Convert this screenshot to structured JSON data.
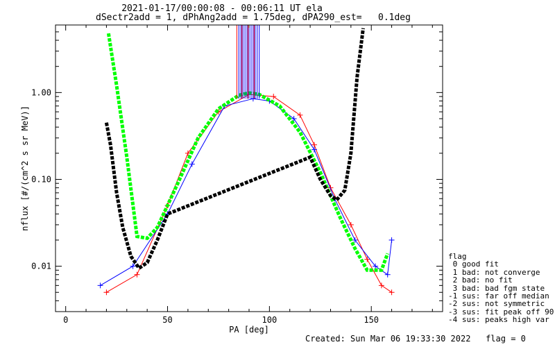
{
  "chart_data": {
    "type": "scatter",
    "title": "2021-01-17/00:00:08 - 00:06:11 UT ela",
    "subtitle": "dSectr2add = 1, dPhAng2add = 1.75deg, dPA290_est=   0.1deg",
    "xlabel": "PA [deg]",
    "ylabel": "nflux [#/(cm^2 s sr MeV)]",
    "xlim": [
      -5,
      185
    ],
    "ylim": [
      0.003,
      6.0
    ],
    "yscale": "log",
    "xticks": [
      0,
      50,
      100,
      150
    ],
    "yticks": [
      {
        "value": 0.01,
        "label": "0.01"
      },
      {
        "value": 0.1,
        "label": "0.10"
      },
      {
        "value": 1.0,
        "label": "1.00"
      }
    ],
    "series": [
      {
        "style": "thin lines with + markers",
        "color": "#ff0000",
        "x": [
          20,
          35,
          50,
          60,
          75,
          90,
          102,
          115,
          122,
          130,
          140,
          148,
          155,
          160
        ],
        "values": [
          0.005,
          0.008,
          0.05,
          0.2,
          0.6,
          0.95,
          0.9,
          0.55,
          0.25,
          0.08,
          0.03,
          0.012,
          0.006,
          0.005
        ]
      },
      {
        "style": "thin lines with + markers",
        "color": "#0000ff",
        "x": [
          17,
          33,
          50,
          62,
          78,
          92,
          100,
          112,
          122,
          132,
          142,
          152,
          158,
          160
        ],
        "values": [
          0.006,
          0.01,
          0.04,
          0.15,
          0.7,
          0.85,
          0.8,
          0.5,
          0.22,
          0.06,
          0.02,
          0.01,
          0.008,
          0.02
        ]
      },
      {
        "style": "thick dashed fit",
        "color": "#00ff00",
        "x": [
          21,
          25,
          30,
          35,
          40,
          45,
          55,
          65,
          75,
          85,
          90,
          95,
          105,
          115,
          125,
          135,
          142,
          148,
          155,
          158
        ],
        "values": [
          4.8,
          1.2,
          0.18,
          0.022,
          0.021,
          0.028,
          0.09,
          0.3,
          0.65,
          0.93,
          0.99,
          0.95,
          0.7,
          0.35,
          0.12,
          0.035,
          0.016,
          0.009,
          0.009,
          0.014
        ]
      },
      {
        "style": "thick dashed fit",
        "color": "#000000",
        "x": [
          20,
          22,
          25,
          28,
          32,
          36,
          40,
          45,
          50,
          120,
          125,
          130,
          133,
          137,
          140,
          143,
          146
        ],
        "values": [
          0.45,
          0.25,
          0.07,
          0.028,
          0.013,
          0.0095,
          0.011,
          0.02,
          0.04,
          0.18,
          0.1,
          0.065,
          0.058,
          0.075,
          0.2,
          1.5,
          5.5
        ]
      },
      {
        "style": "vertical lines",
        "color": "#0000ff",
        "x": [
          85,
          86,
          87,
          88,
          89,
          90,
          91,
          92,
          93,
          94,
          95
        ],
        "values": [
          6,
          6,
          6,
          6,
          6,
          6,
          6,
          6,
          6,
          6,
          6
        ]
      },
      {
        "style": "vertical lines",
        "color": "#ff0000",
        "x": [
          84,
          86.5,
          89.5,
          92.5
        ],
        "values": [
          6,
          6,
          6,
          6
        ]
      }
    ]
  },
  "legend": {
    "title": "flag",
    "entries": [
      " 0 good fit",
      " 1 bad: not converge",
      " 2 bad: no fit",
      " 3 bad: bad fgm state",
      "-1 sus: far off median",
      "-2 sus: not symmetric",
      "-3 sus: fit peak off 90",
      "-4 sus: peaks high var"
    ]
  },
  "footer": "Created: Sun Mar 06 19:33:30 2022   flag = 0"
}
